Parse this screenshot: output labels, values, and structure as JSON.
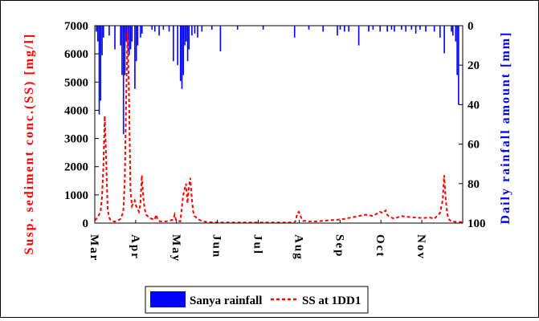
{
  "chart_data": {
    "type": "bar+line",
    "categories": [
      "Mar",
      "Apr",
      "May",
      "Jun",
      "Jul",
      "Aug",
      "Sep",
      "Oct",
      "Nov"
    ],
    "y_left": {
      "label": "Susp. sediment conc.(SS) [mg/l]",
      "ylim": [
        0,
        7000
      ],
      "ticks": [
        0,
        1000,
        2000,
        3000,
        4000,
        5000,
        6000,
        7000
      ],
      "tick_labels": [
        "0",
        "1000",
        "2000",
        "3000",
        "4000",
        "5000",
        "6000",
        "7000"
      ]
    },
    "y_right": {
      "label": "Daily rainfall amount [mm]",
      "ylim": [
        0,
        100
      ],
      "inverted": true,
      "ticks": [
        0,
        20,
        40,
        60,
        80,
        100
      ],
      "tick_labels": [
        "0",
        "20",
        "40",
        "60",
        "80",
        "100"
      ]
    },
    "xlim": [
      0,
      258
    ],
    "grid": false,
    "legend_position": "bottom-center",
    "series": [
      {
        "name": "Sanya rainfall",
        "kind": "bar",
        "axis": "right",
        "color": "#0000ff",
        "x": [
          1,
          2,
          3,
          4,
          5,
          6,
          10,
          14,
          18,
          19,
          20,
          21,
          22,
          23,
          24,
          25,
          26,
          28,
          29,
          30,
          32,
          33,
          40,
          42,
          45,
          48,
          52,
          55,
          58,
          60,
          61,
          62,
          63,
          64,
          65,
          66,
          68,
          70,
          72,
          75,
          82,
          88,
          100,
          118,
          140,
          150,
          160,
          170,
          172,
          175,
          178,
          185,
          192,
          195,
          200,
          205,
          208,
          210,
          215,
          218,
          222,
          225,
          228,
          232,
          238,
          242,
          245,
          250,
          251,
          253,
          254,
          255
        ],
        "values": [
          3,
          8,
          45,
          38,
          15,
          6,
          5,
          12,
          10,
          25,
          55,
          25,
          8,
          6,
          15,
          12,
          8,
          32,
          18,
          10,
          6,
          4,
          2,
          3,
          5,
          2,
          3,
          18,
          20,
          28,
          32,
          25,
          10,
          8,
          18,
          12,
          5,
          4,
          6,
          3,
          2,
          13,
          2,
          2,
          6,
          2,
          3,
          5,
          2,
          3,
          3,
          10,
          3,
          2,
          3,
          3,
          2,
          3,
          2,
          3,
          2,
          4,
          2,
          3,
          3,
          6,
          14,
          3,
          5,
          8,
          25,
          40
        ]
      },
      {
        "name": "SS at 1DD1",
        "kind": "line",
        "axis": "left",
        "color": "#ff0000",
        "dash": "dashed",
        "x": [
          0,
          2,
          4,
          5,
          6,
          7,
          8,
          9,
          10,
          11,
          12,
          14,
          16,
          18,
          20,
          21,
          22,
          23,
          24,
          25,
          26,
          27,
          28,
          29,
          30,
          31,
          32,
          33,
          34,
          35,
          36,
          38,
          40,
          42,
          43,
          44,
          45,
          46,
          48,
          50,
          55,
          56,
          57,
          58,
          60,
          62,
          64,
          65,
          66,
          67,
          68,
          69,
          70,
          72,
          74,
          76,
          80,
          90,
          110,
          130,
          140,
          141,
          142,
          143,
          144,
          145,
          146,
          148,
          150,
          155,
          160,
          165,
          170,
          175,
          180,
          185,
          190,
          195,
          200,
          202,
          204,
          205,
          206,
          208,
          210,
          212,
          215,
          220,
          225,
          230,
          235,
          238,
          240,
          242,
          244,
          245,
          246,
          247,
          248,
          250,
          252,
          255,
          258
        ],
        "values": [
          100,
          200,
          400,
          900,
          2000,
          3800,
          2200,
          500,
          200,
          120,
          80,
          50,
          80,
          150,
          400,
          1500,
          4500,
          6800,
          4500,
          1200,
          600,
          700,
          800,
          600,
          500,
          400,
          700,
          1700,
          900,
          500,
          300,
          200,
          150,
          120,
          300,
          150,
          80,
          60,
          60,
          60,
          120,
          300,
          100,
          80,
          60,
          1000,
          1400,
          700,
          1300,
          1600,
          900,
          400,
          250,
          150,
          100,
          60,
          30,
          20,
          20,
          20,
          20,
          100,
          350,
          400,
          300,
          150,
          80,
          80,
          60,
          60,
          80,
          100,
          120,
          150,
          200,
          250,
          300,
          250,
          400,
          350,
          450,
          300,
          250,
          200,
          150,
          200,
          250,
          220,
          200,
          180,
          200,
          150,
          250,
          350,
          800,
          1700,
          900,
          400,
          150,
          60,
          50,
          40,
          30
        ]
      }
    ]
  }
}
